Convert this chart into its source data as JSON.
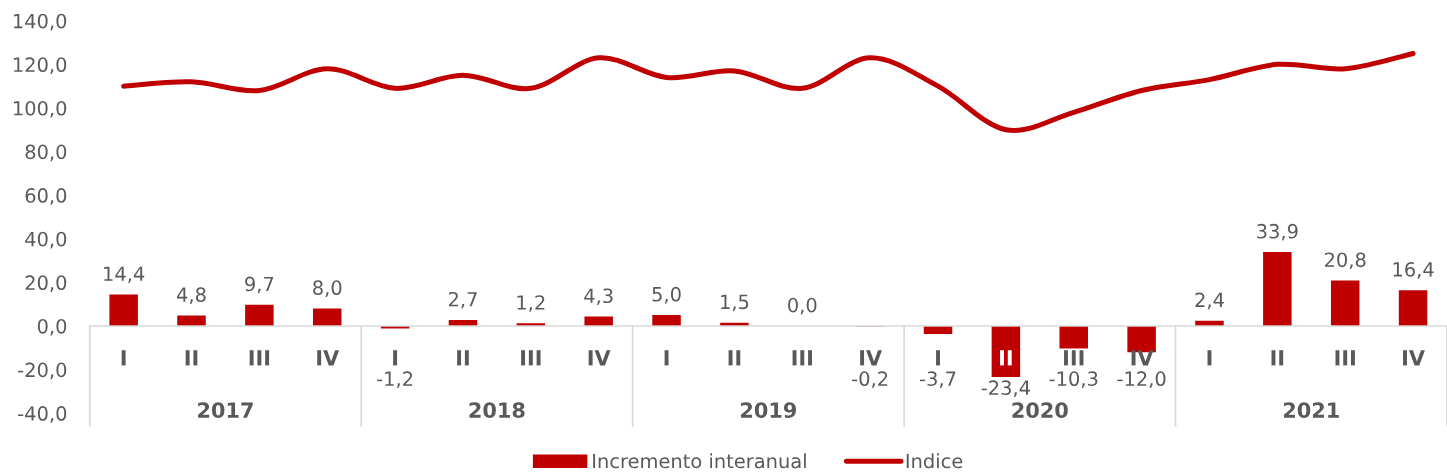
{
  "chart_data": {
    "type": "bar",
    "categories": [
      "I",
      "II",
      "III",
      "IV",
      "I",
      "II",
      "III",
      "IV",
      "I",
      "II",
      "III",
      "IV",
      "I",
      "II",
      "III",
      "IV",
      "I",
      "II",
      "III",
      "IV"
    ],
    "series": [
      {
        "name": "Incremento interanual",
        "color": "#c00000",
        "values": [
          14.4,
          4.8,
          9.7,
          8.0,
          -1.2,
          2.7,
          1.2,
          4.3,
          5.0,
          1.5,
          0.0,
          -0.2,
          -3.7,
          -23.4,
          -10.3,
          -12.0,
          2.4,
          33.9,
          20.8,
          16.4
        ],
        "value_labels": [
          "14,4",
          "4,8",
          "9,7",
          "8,0",
          "-1,2",
          "2,7",
          "1,2",
          "4,3",
          "5,0",
          "1,5",
          "0,0",
          "-0,2",
          "-3,7",
          "-23,4",
          "-10,3",
          "-12,0",
          "2,4",
          "33,9",
          "20,8",
          "16,4"
        ]
      },
      {
        "name": "Indice",
        "type": "line",
        "color": "#c00000",
        "values": [
          110,
          112,
          108,
          118,
          109,
          115,
          109,
          123,
          114,
          117,
          109,
          123,
          110,
          90,
          98,
          108,
          113,
          120,
          118,
          125
        ]
      }
    ],
    "annotations": [
      "2017",
      "2018",
      "2019",
      "2020",
      "2021"
    ],
    "ylim": [
      -40,
      140
    ],
    "yticks": [
      {
        "value": -40,
        "label": "-40,0"
      },
      {
        "value": -20,
        "label": "-20,0"
      },
      {
        "value": 0,
        "label": "0,0"
      },
      {
        "value": 20,
        "label": "20,0"
      },
      {
        "value": 40,
        "label": "40,0"
      },
      {
        "value": 60,
        "label": "60,0"
      },
      {
        "value": 80,
        "label": "80,0"
      },
      {
        "value": 100,
        "label": "100,0"
      },
      {
        "value": 120,
        "label": "120,0"
      },
      {
        "value": 140,
        "label": "140,0"
      }
    ],
    "grid": false,
    "legend": "bottom"
  }
}
